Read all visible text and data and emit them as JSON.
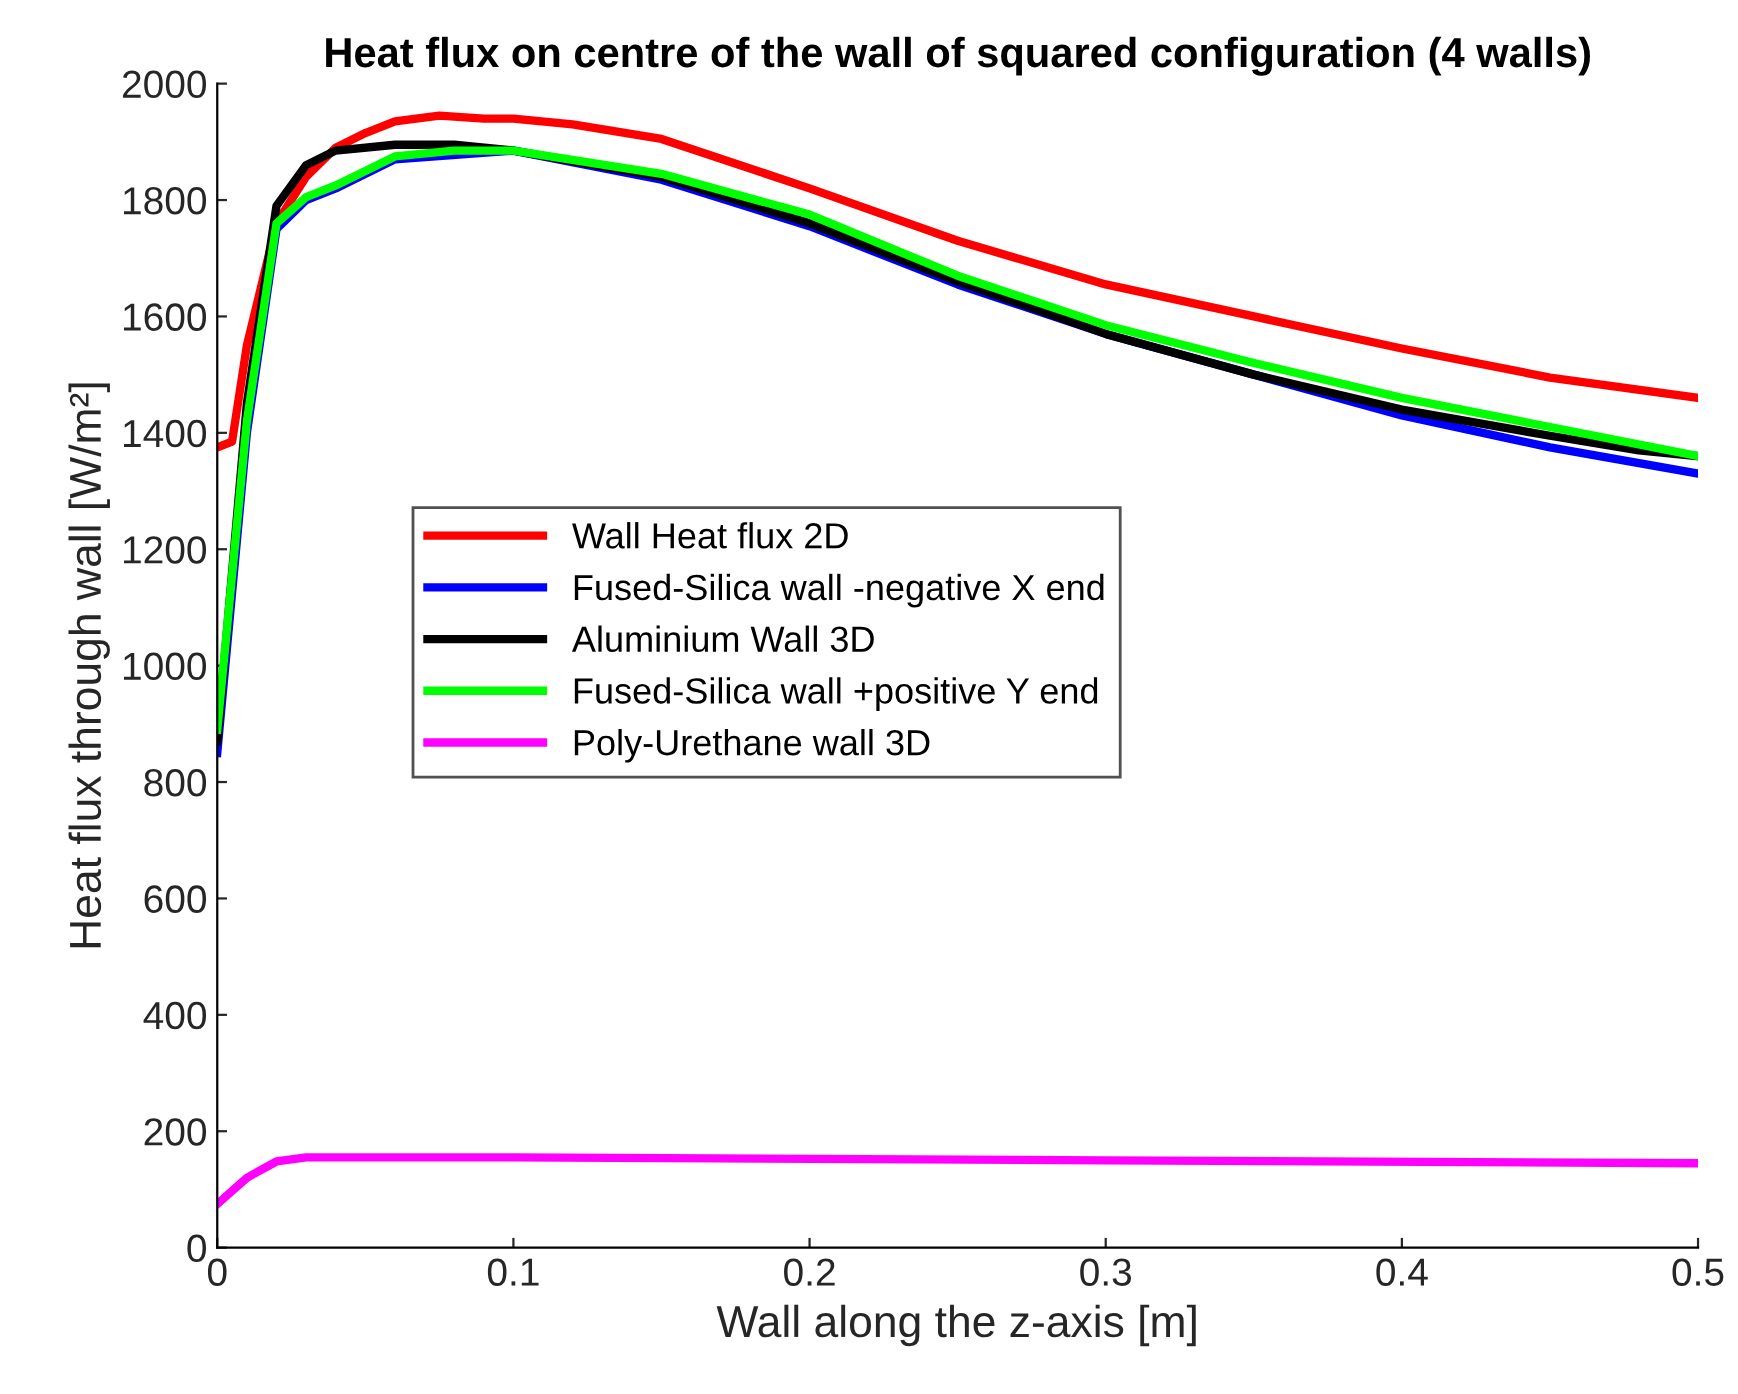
{
  "chart_data": {
    "type": "line",
    "title": "Heat flux on centre of the wall of squared configuration (4 walls)",
    "xlabel": "Wall along the z-axis [m]",
    "ylabel": "Heat flux through wall [W/m²]",
    "xlim": [
      0,
      0.5
    ],
    "ylim": [
      0,
      2000
    ],
    "xticks": [
      0,
      0.1,
      0.2,
      0.3,
      0.4,
      0.5
    ],
    "yticks": [
      0,
      200,
      400,
      600,
      800,
      1000,
      1200,
      1400,
      1600,
      1800,
      2000
    ],
    "grid": false,
    "legend": "left",
    "marker": "none",
    "line_style": "solid",
    "series": [
      {
        "name": "Wall Heat flux 2D",
        "color": "#ff0000",
        "x": [
          0,
          0.005,
          0.01,
          0.02,
          0.03,
          0.04,
          0.05,
          0.06,
          0.075,
          0.09,
          0.1,
          0.12,
          0.15,
          0.2,
          0.25,
          0.3,
          0.35,
          0.4,
          0.45,
          0.5
        ],
        "values": [
          1375,
          1385,
          1550,
          1760,
          1840,
          1890,
          1915,
          1935,
          1945,
          1940,
          1940,
          1930,
          1905,
          1820,
          1730,
          1655,
          1600,
          1545,
          1495,
          1460
        ]
      },
      {
        "name": "Fused-Silica wall -negative X end",
        "color": "#0000ff",
        "x": [
          0,
          0.01,
          0.02,
          0.03,
          0.04,
          0.06,
          0.1,
          0.15,
          0.2,
          0.25,
          0.3,
          0.35,
          0.4,
          0.45,
          0.5
        ],
        "values": [
          850,
          1400,
          1750,
          1800,
          1820,
          1870,
          1885,
          1835,
          1755,
          1655,
          1570,
          1500,
          1430,
          1375,
          1330
        ]
      },
      {
        "name": "Aluminium Wall 3D",
        "color": "#000000",
        "x": [
          0,
          0.01,
          0.02,
          0.03,
          0.04,
          0.06,
          0.08,
          0.1,
          0.15,
          0.2,
          0.25,
          0.3,
          0.35,
          0.4,
          0.45,
          0.48,
          0.5
        ],
        "values": [
          870,
          1450,
          1790,
          1860,
          1885,
          1895,
          1895,
          1885,
          1840,
          1760,
          1660,
          1570,
          1500,
          1440,
          1395,
          1370,
          1360
        ]
      },
      {
        "name": "Fused-Silica wall +positive Y end",
        "color": "#00ff00",
        "x": [
          0,
          0.01,
          0.02,
          0.03,
          0.04,
          0.06,
          0.08,
          0.1,
          0.15,
          0.2,
          0.25,
          0.3,
          0.35,
          0.4,
          0.45,
          0.5
        ],
        "values": [
          890,
          1420,
          1760,
          1805,
          1825,
          1875,
          1885,
          1885,
          1845,
          1775,
          1670,
          1585,
          1520,
          1460,
          1410,
          1360
        ]
      },
      {
        "name": "Poly-Urethane wall 3D",
        "color": "#ff00ff",
        "x": [
          0,
          0.01,
          0.02,
          0.03,
          0.1,
          0.3,
          0.5
        ],
        "values": [
          75,
          120,
          148,
          155,
          155,
          150,
          145
        ]
      }
    ]
  }
}
